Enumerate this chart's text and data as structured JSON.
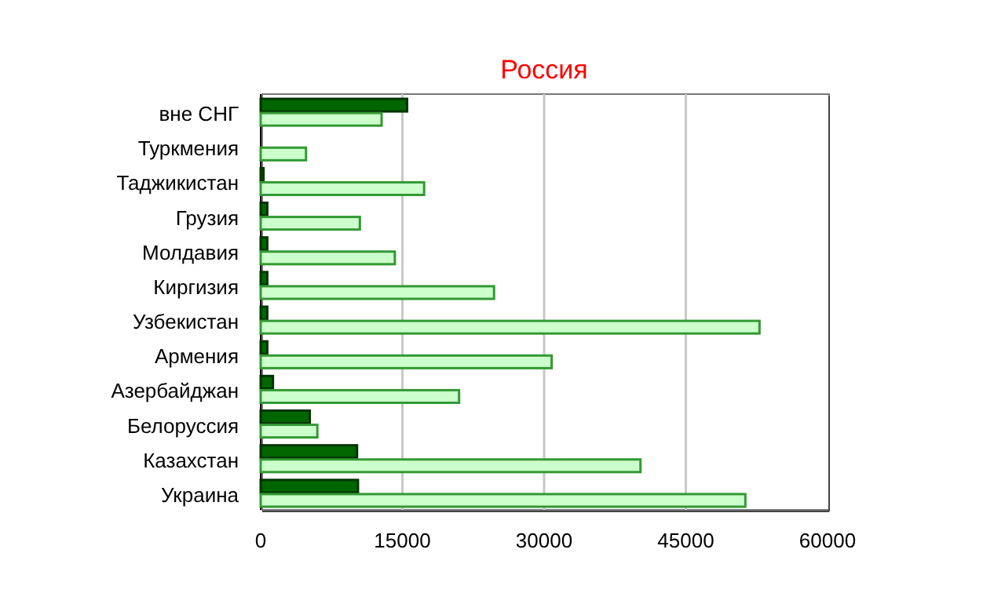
{
  "chart_data": {
    "type": "bar",
    "orientation": "horizontal",
    "title": "Россия",
    "categories": [
      "вне СНГ",
      "Туркмения",
      "Таджикистан",
      "Грузия",
      "Молдавия",
      "Киргизия",
      "Узбекистан",
      "Армения",
      "Азербайджан",
      "Белоруссия",
      "Казахстан",
      "Украина"
    ],
    "series": [
      {
        "color": "#006600",
        "values": [
          15500,
          null,
          300,
          700,
          700,
          700,
          700,
          700,
          1300,
          5200,
          10200,
          10300
        ]
      },
      {
        "color": "#ccffcc",
        "values": [
          12800,
          4800,
          17300,
          10500,
          14200,
          24700,
          52800,
          30800,
          21000,
          6000,
          40200,
          51300
        ]
      }
    ],
    "xlim": [
      0,
      60000
    ],
    "xticks": [
      0,
      15000,
      30000,
      45000,
      60000
    ],
    "grid": "x"
  }
}
